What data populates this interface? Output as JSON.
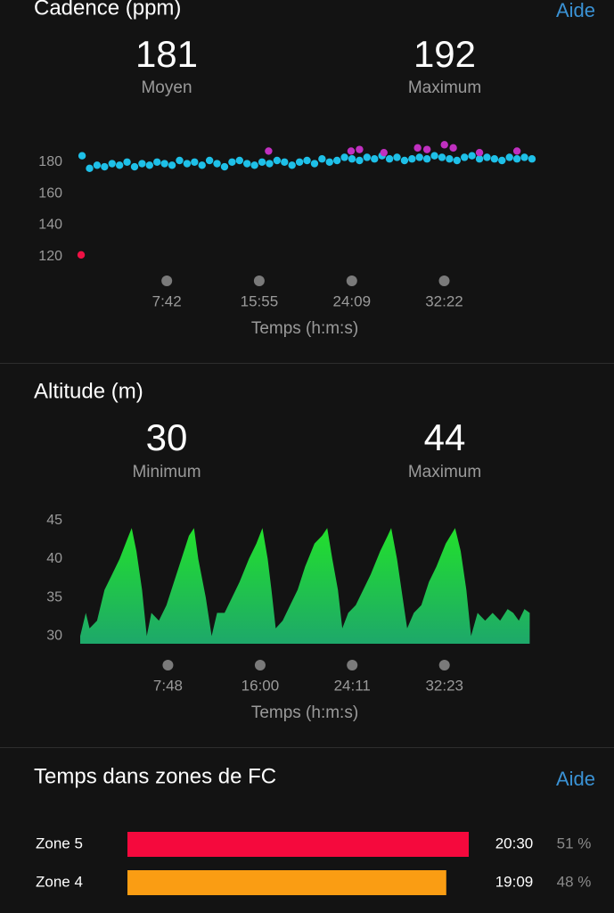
{
  "chart_data": [
    {
      "type": "scatter",
      "title": "Cadence (ppm)",
      "help": "Aide",
      "stats": [
        {
          "value": 181,
          "label": "Moyen"
        },
        {
          "value": 192,
          "label": "Maximum"
        }
      ],
      "xlabel": "Temps (h:m:s)",
      "xlim": [
        0,
        2415
      ],
      "ylim": [
        113,
        198
      ],
      "xticks": [
        {
          "value": 462,
          "label": "7:42"
        },
        {
          "value": 955,
          "label": "15:55"
        },
        {
          "value": 1449,
          "label": "24:09"
        },
        {
          "value": 1942,
          "label": "32:22"
        }
      ],
      "yticks": [
        120,
        140,
        160,
        180
      ],
      "series": [
        {
          "color": "#1ec0e8",
          "x": [
            10,
            50,
            90,
            130,
            170,
            210,
            250,
            290,
            330,
            370,
            410,
            450,
            490,
            530,
            570,
            610,
            650,
            690,
            730,
            770,
            810,
            850,
            890,
            930,
            970,
            1010,
            1050,
            1090,
            1130,
            1170,
            1210,
            1250,
            1290,
            1330,
            1370,
            1410,
            1450,
            1490,
            1530,
            1570,
            1610,
            1650,
            1690,
            1730,
            1770,
            1810,
            1850,
            1890,
            1930,
            1970,
            2010,
            2050,
            2090,
            2130,
            2170,
            2210,
            2250,
            2290,
            2330,
            2370,
            2410
          ],
          "values": [
            184,
            176,
            178,
            177,
            179,
            178,
            180,
            177,
            179,
            178,
            180,
            179,
            178,
            181,
            179,
            180,
            178,
            181,
            179,
            177,
            180,
            181,
            179,
            178,
            180,
            179,
            181,
            180,
            178,
            180,
            181,
            179,
            182,
            180,
            181,
            183,
            182,
            181,
            183,
            182,
            184,
            182,
            183,
            181,
            182,
            183,
            182,
            184,
            183,
            182,
            181,
            183,
            184,
            182,
            183,
            182,
            181,
            183,
            182,
            183,
            182
          ]
        },
        {
          "color": "#c030c0",
          "x": [
            1005,
            1445,
            1490,
            1620,
            1800,
            1850,
            1943,
            1990,
            2130,
            2330
          ],
          "values": [
            187,
            187,
            188,
            186,
            189,
            188,
            191,
            189,
            186,
            187
          ]
        },
        {
          "color": "#ee1144",
          "x": [
            5
          ],
          "values": [
            121
          ]
        }
      ]
    },
    {
      "type": "area",
      "title": "Altitude (m)",
      "stats": [
        {
          "value": 30,
          "label": "Minimum"
        },
        {
          "value": 44,
          "label": "Maximum"
        }
      ],
      "xlabel": "Temps (h:m:s)",
      "xlim": [
        0,
        2415
      ],
      "ylim": [
        29,
        46
      ],
      "xticks": [
        {
          "value": 468,
          "label": "7:48"
        },
        {
          "value": 960,
          "label": "16:00"
        },
        {
          "value": 1451,
          "label": "24:11"
        },
        {
          "value": 1943,
          "label": "32:23"
        }
      ],
      "yticks": [
        30,
        35,
        40,
        45
      ],
      "x": [
        0,
        30,
        50,
        90,
        130,
        170,
        210,
        250,
        275,
        300,
        330,
        355,
        380,
        420,
        460,
        500,
        540,
        580,
        607,
        630,
        670,
        701,
        730,
        770,
        810,
        850,
        900,
        940,
        972,
        1000,
        1020,
        1043,
        1080,
        1120,
        1160,
        1200,
        1250,
        1290,
        1318,
        1345,
        1375,
        1398,
        1430,
        1470,
        1510,
        1550,
        1600,
        1640,
        1659,
        1690,
        1720,
        1744,
        1780,
        1820,
        1860,
        1900,
        1950,
        2000,
        2030,
        2060,
        2085,
        2120,
        2160,
        2200,
        2240,
        2280,
        2310,
        2340,
        2370,
        2398
      ],
      "values": [
        30,
        33,
        31,
        32,
        36,
        38,
        40,
        42.5,
        44,
        41,
        36,
        30,
        33,
        32,
        34,
        37,
        40,
        43,
        44,
        40,
        35,
        30,
        33,
        33,
        35,
        37,
        40,
        42,
        44,
        40,
        36,
        31,
        32,
        34,
        36,
        39,
        42,
        43,
        44,
        40,
        36,
        31,
        33,
        34,
        36,
        38,
        41,
        43,
        44,
        40,
        35,
        31,
        33,
        34,
        37,
        39,
        42,
        44,
        41,
        36,
        30,
        33,
        32,
        33,
        32,
        33.5,
        33,
        32,
        33.5,
        33
      ]
    },
    {
      "type": "bar",
      "orientation": "horizontal",
      "title": "Temps dans zones de FC",
      "help": "Aide",
      "categories": [
        "Zone 5",
        "Zone 4"
      ],
      "xlim": [
        0,
        1230
      ],
      "values": [
        1230,
        1149
      ],
      "value_labels": [
        "20:30",
        "19:09"
      ],
      "colors": [
        "#f5093d",
        "#fa9d13"
      ],
      "percents": [
        51,
        48
      ],
      "percent_labels": [
        "51 %",
        "48 %"
      ]
    }
  ]
}
